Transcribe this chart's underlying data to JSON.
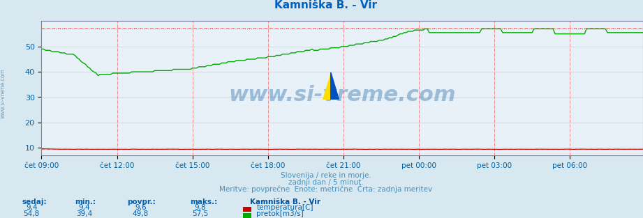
{
  "title": "Kamniška B. - Vir",
  "bg_color": "#d8e8f0",
  "plot_bg_color": "#e8f0f8",
  "grid_color_major": "#c0c0c0",
  "grid_color_minor": "#d8d8d8",
  "red_dashed_color": "#ff8080",
  "ylim": [
    7,
    60
  ],
  "yticks": [
    10,
    20,
    30,
    40,
    50
  ],
  "xlabel_color": "#0060a0",
  "title_color": "#0060c0",
  "subtitle_lines": [
    "Slovenija / reke in morje.",
    "zadnji dan / 5 minut.",
    "Meritve: povprečne  Enote: metrične  Črta: zadnja meritev"
  ],
  "subtitle_color": "#4090c0",
  "watermark_text": "www.si-vreme.com",
  "watermark_color": "#1060a0",
  "watermark_alpha": 0.35,
  "sidewatermark_text": "www.si-vreme.com",
  "xtick_labels": [
    "čet 09:00",
    "čet 12:00",
    "čet 15:00",
    "čet 18:00",
    "čet 21:00",
    "pet 00:00",
    "pet 03:00",
    "pet 06:00"
  ],
  "xtick_positions": [
    0,
    36,
    72,
    108,
    144,
    180,
    216,
    252
  ],
  "n_points": 288,
  "temp_color": "#cc0000",
  "flow_color": "#00aa00",
  "flow_dotted_color": "#00cc00",
  "temp_value": 9.4,
  "temp_min": 9.4,
  "temp_avg": 9.6,
  "temp_max": 9.8,
  "flow_value": 54.8,
  "flow_min": 39.4,
  "flow_avg": 49.8,
  "flow_max": 57.5,
  "legend_title": "Kamniška B. - Vir",
  "legend_color": "#0050a0",
  "table_header_color": "#0060b0",
  "table_value_color": "#0060b0"
}
